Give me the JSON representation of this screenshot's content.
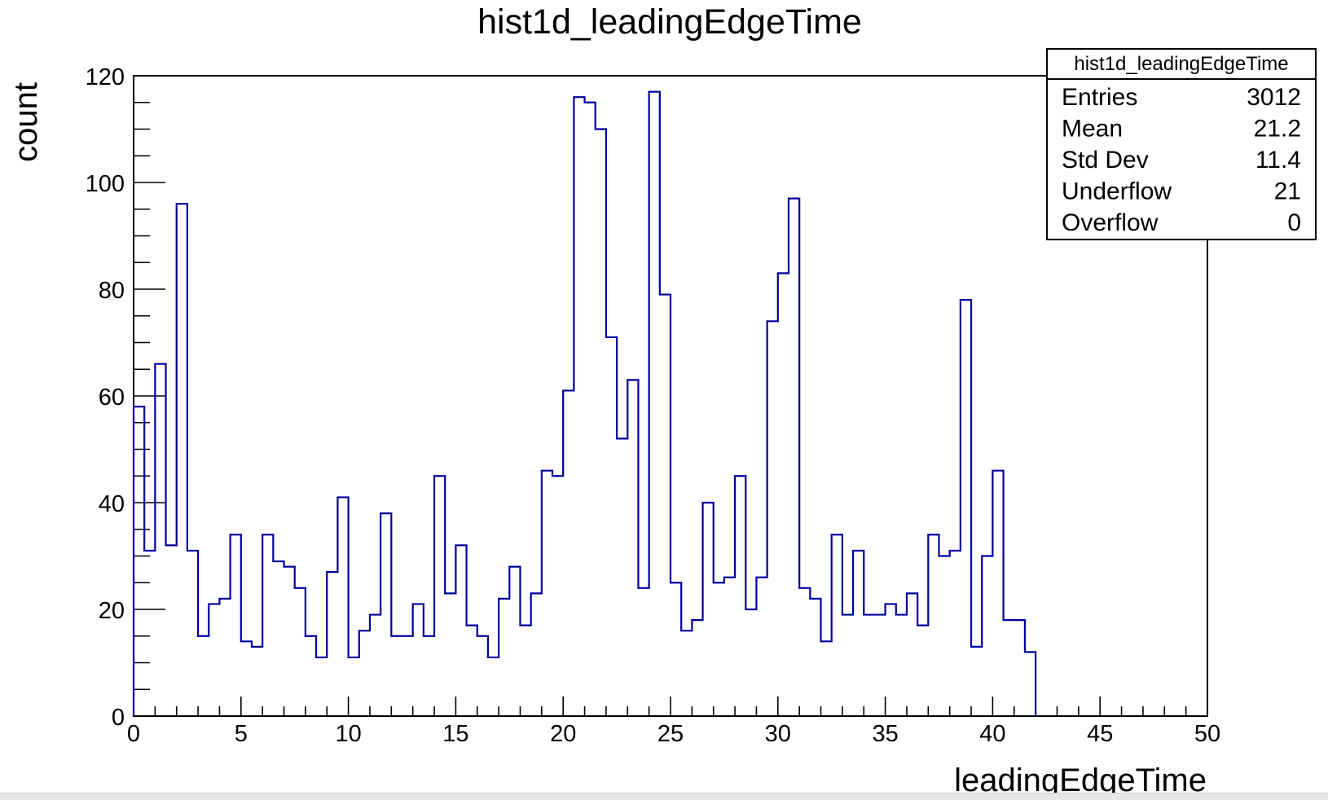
{
  "chart_data": {
    "type": "bar",
    "title": "hist1d_leadingEdgeTime",
    "xlabel": "leadingEdgeTime",
    "ylabel": "count",
    "xlim": [
      0,
      50
    ],
    "ylim": [
      0,
      120
    ],
    "bin_width": 0.5,
    "x_ticks": [
      "0",
      "5",
      "10",
      "15",
      "20",
      "25",
      "30",
      "35",
      "40",
      "45",
      "50"
    ],
    "y_ticks": [
      "0",
      "20",
      "40",
      "60",
      "80",
      "100",
      "120"
    ],
    "values": [
      58,
      31,
      66,
      32,
      96,
      31,
      15,
      21,
      22,
      34,
      14,
      13,
      34,
      29,
      28,
      24,
      15,
      11,
      27,
      41,
      11,
      16,
      19,
      38,
      15,
      15,
      21,
      15,
      45,
      23,
      32,
      17,
      15,
      11,
      22,
      28,
      17,
      23,
      46,
      45,
      61,
      116,
      115,
      110,
      71,
      52,
      63,
      24,
      117,
      79,
      25,
      16,
      18,
      40,
      25,
      26,
      45,
      20,
      26,
      74,
      83,
      97,
      24,
      22,
      14,
      34,
      19,
      31,
      19,
      19,
      21,
      19,
      23,
      17,
      34,
      30,
      31,
      78,
      13,
      30,
      46,
      18,
      18,
      12
    ],
    "line_color": "#00009c",
    "grid": false,
    "stats_box": {
      "title": "hist1d_leadingEdgeTime",
      "rows": [
        {
          "label": "Entries",
          "value": "3012"
        },
        {
          "label": "Mean",
          "value": "21.2"
        },
        {
          "label": "Std Dev",
          "value": "11.4"
        },
        {
          "label": "Underflow",
          "value": "21"
        },
        {
          "label": "Overflow",
          "value": "0"
        }
      ]
    }
  }
}
